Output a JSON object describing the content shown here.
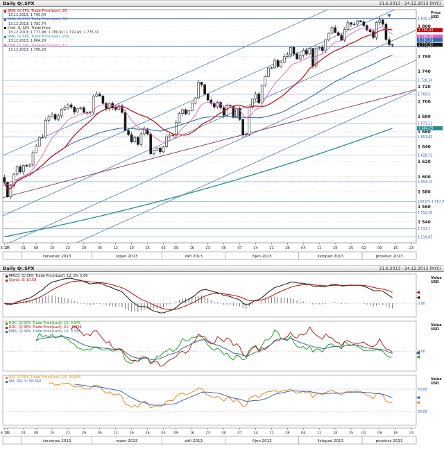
{
  "main": {
    "header": {
      "title": "Daily Q/.SPX",
      "range": "21.6.2013 - 24.12.2013 (NYC)"
    },
    "axis_caption": [
      "Price",
      "USD"
    ],
    "legend": [
      {
        "color": "#d00000",
        "name": "SMA, Q/.SPX, Trade Price(Last), 20",
        "value": "13.12.2013; 1 795,04"
      },
      {
        "color": "#2f6fbf",
        "name": "SMA, Q/.SPX, Trade Price(Last), 50",
        "value": "13.12.2013; 1 781,74"
      },
      {
        "color": "#1a1a1a",
        "name": "Cndl, Q/.SPX, Trade Price",
        "value": "13.12.2013; 1 777,98; 1 780,92; 1 772,45; 1 775,32"
      },
      {
        "color": "#1f9090",
        "name": "SMA, Q/.SPX, Trade Price(Last), 200",
        "value": "13.12.2013; 1 664,29"
      },
      {
        "color": "#e060c0",
        "name": "EMA, Q/.SPX, Trade Price(Last), 10",
        "value": "13.12.2013; 1 786,29"
      }
    ]
  },
  "sub": {
    "header": {
      "title": "Daily Q/.SPX",
      "range": "21.6.2013 - 24.12.2013 (NYC)"
    }
  },
  "indicators": {
    "macd": {
      "axis_caption": [
        "Value",
        "USD"
      ],
      "legend": [
        {
          "color": "#111111",
          "name": "MACD, Q/.SPX, Trade Price(Last), 12, 26; 5,66"
        },
        {
          "color": "#cc0000",
          "name": "Signal, 9; 10,58"
        }
      ]
    },
    "roc": {
      "axis_caption": [
        "Value",
        "USD"
      ],
      "legend": [
        {
          "color": "#00a000",
          "name": "ROC, Q/.SPX, Trade Price(Last), 10; 0,976"
        },
        {
          "color": "#cc0000",
          "name": "ROC, Q/.SPX, Trade Price(Last), 21; -0,864"
        },
        {
          "color": "#336699",
          "name": "EMA, Q/.SPX, Trade Price(Last), 10; 0,328"
        }
      ]
    },
    "rsi": {
      "axis_caption": [
        "Value",
        "USD"
      ],
      "legend": [
        {
          "color": "#ff8000",
          "name": "RSI, Q/.SPX, Trade Price(Last), 14; 45,845"
        },
        {
          "color": "#3366cc",
          "name": "MA, RSI, 9; 58,640"
        }
      ]
    }
  },
  "chart_data": [
    {
      "type": "candlestick",
      "title": "Daily Q/.SPX",
      "x_range_days": [
        0,
        130
      ],
      "ylim": [
        1512,
        1822
      ],
      "first_open": 1599,
      "close": [
        1592.43,
        1573.09,
        1588.03,
        1603.26,
        1613.2,
        1606.28,
        1614.96,
        1614.08,
        1615.41,
        1631.89,
        1640.46,
        1652.32,
        1652.62,
        1675.02,
        1680.19,
        1682.5,
        1676.26,
        1680.91,
        1689.37,
        1692.09,
        1695.53,
        1692.39,
        1685.94,
        1690.25,
        1691.65,
        1685.33,
        1685.96,
        1685.73,
        1706.87,
        1709.67,
        1707.14,
        1697.37,
        1690.91,
        1697.48,
        1691.42,
        1689.47,
        1694.16,
        1685.39,
        1661.32,
        1655.83,
        1646.06,
        1652.35,
        1642.8,
        1656.96,
        1663.5,
        1656.78,
        1630.48,
        1634.96,
        1638.17,
        1632.97,
        1639.77,
        1653.08,
        1655.08,
        1655.17,
        1671.71,
        1683.99,
        1689.13,
        1683.42,
        1687.99,
        1697.6,
        1704.76,
        1725.52,
        1722.34,
        1709.91,
        1701.84,
        1697.42,
        1692.77,
        1698.67,
        1691.75,
        1681.55,
        1695.0,
        1693.87,
        1678.66,
        1690.5,
        1676.12,
        1655.45,
        1656.4,
        1692.56,
        1703.2,
        1710.14,
        1698.06,
        1721.54,
        1733.15,
        1744.5,
        1744.66,
        1754.67,
        1746.38,
        1752.07,
        1759.77,
        1762.11,
        1771.95,
        1763.31,
        1756.54,
        1761.64,
        1767.93,
        1762.97,
        1770.49,
        1747.15,
        1770.61,
        1771.89,
        1767.69,
        1782.0,
        1790.62,
        1798.18,
        1791.53,
        1787.87,
        1781.37,
        1795.85,
        1804.76,
        1802.48,
        1802.75,
        1807.23,
        1805.81,
        1800.9,
        1795.15,
        1792.81,
        1785.03,
        1805.09,
        1808.37,
        1802.62,
        1782.22,
        1775.5,
        1775.32
      ],
      "colors": {
        "sma20": "#d00000",
        "sma50": "#2f6fbf",
        "sma200": "#1f9090",
        "ema10": "#e060c0"
      },
      "sma200_anchors": [
        1520,
        1664.29
      ],
      "yticks": [
        {
          "v": 1800,
          "t": "1 800"
        },
        {
          "v": 1780,
          "t": "1 780"
        },
        {
          "v": 1760,
          "t": "1 760"
        },
        {
          "v": 1740,
          "t": "1 740"
        },
        {
          "v": 1720,
          "t": "1 720"
        },
        {
          "v": 1700,
          "t": "1 700"
        },
        {
          "v": 1680,
          "t": "1 680"
        },
        {
          "v": 1660,
          "t": "1 660"
        },
        {
          "v": 1640,
          "t": "1 640"
        },
        {
          "v": 1620,
          "t": "1 620"
        },
        {
          "v": 1600,
          "t": "1 600"
        },
        {
          "v": 1580,
          "t": "1 580"
        },
        {
          "v": 1560,
          "t": "1 560"
        },
        {
          "v": 1540,
          "t": "1 540"
        }
      ],
      "levels": [
        {
          "v": 1810.25,
          "t": "1 810,25",
          "s": 1
        },
        {
          "v": 1773.46,
          "t": "1 773,46",
          "s": 1
        },
        {
          "v": 1728.34,
          "t": "1 728,34"
        },
        {
          "v": 1709.5,
          "t": "1 709,5"
        },
        {
          "v": 1671.12,
          "t": "1 671,12"
        },
        {
          "v": 1653.03,
          "t": "1 653,03"
        },
        {
          "v": 1628.72,
          "t": "1 628,72"
        },
        {
          "v": 1593.24,
          "t": "1 593,24"
        },
        {
          "v": 1567.06,
          "t": "100,0%  1 567,06"
        },
        {
          "v": 1552.26,
          "t": "1 552,26"
        },
        {
          "v": 1531.1,
          "t": "1 531,1"
        },
        {
          "v": 1519.87,
          "t": "1 519,87"
        }
      ],
      "trendlines": [
        {
          "x1": 0,
          "y1": 1468,
          "x2": 130,
          "y2": 1715,
          "color": "#4a7ab5",
          "w": 0.8
        },
        {
          "x1": 0,
          "y1": 1508,
          "x2": 130,
          "y2": 1755,
          "color": "#4a7ab5",
          "w": 0.8
        },
        {
          "x1": 0,
          "y1": 1548,
          "x2": 130,
          "y2": 1795,
          "color": "#4a7ab5",
          "w": 0.8
        },
        {
          "x1": 0,
          "y1": 1588,
          "x2": 130,
          "y2": 1835,
          "color": "#4a7ab5",
          "w": 0.8
        },
        {
          "x1": 0,
          "y1": 1628,
          "x2": 130,
          "y2": 1875,
          "color": "#4a7ab5",
          "w": 0.8
        },
        {
          "x1": 0,
          "y1": 1572,
          "x2": 130,
          "y2": 1716,
          "color": "#8b3a62",
          "w": 0.9
        }
      ],
      "markers": [
        {
          "v": 1795.04,
          "t": "1 795,04",
          "c": "#d00000"
        },
        {
          "v": 1786.29,
          "t": "1 786,29",
          "c": "#e060c0"
        },
        {
          "v": 1781.74,
          "t": "1 781,74",
          "c": "#2f6fbf"
        },
        {
          "v": 1775.32,
          "t": "1 775,32",
          "c": "#1a1a1a"
        },
        {
          "v": 1664.29,
          "t": "1 664,29",
          "c": "#1f9090"
        }
      ],
      "annotation": {
        "x": 121,
        "v": 1812,
        "color": "#2255bb"
      },
      "xticks": [
        {
          "x": 0,
          "t": "6 13"
        },
        {
          "x": 1,
          "t": "24"
        },
        {
          "x": 6,
          "t": "01"
        },
        {
          "x": 10,
          "t": "08"
        },
        {
          "x": 15,
          "t": "15"
        },
        {
          "x": 20,
          "t": "22"
        },
        {
          "x": 25,
          "t": "29"
        },
        {
          "x": 30,
          "t": "05"
        },
        {
          "x": 35,
          "t": "12"
        },
        {
          "x": 40,
          "t": "19"
        },
        {
          "x": 45,
          "t": "26"
        },
        {
          "x": 50,
          "t": "03"
        },
        {
          "x": 54,
          "t": "09"
        },
        {
          "x": 59,
          "t": "16"
        },
        {
          "x": 64,
          "t": "23"
        },
        {
          "x": 69,
          "t": "30"
        },
        {
          "x": 74,
          "t": "07"
        },
        {
          "x": 79,
          "t": "14"
        },
        {
          "x": 84,
          "t": "21"
        },
        {
          "x": 89,
          "t": "28"
        },
        {
          "x": 94,
          "t": "04"
        },
        {
          "x": 99,
          "t": "11"
        },
        {
          "x": 104,
          "t": "18"
        },
        {
          "x": 109,
          "t": "25"
        },
        {
          "x": 113,
          "t": "02"
        },
        {
          "x": 118,
          "t": "09"
        },
        {
          "x": 123,
          "t": "16"
        },
        {
          "x": 128,
          "t": "23"
        }
      ],
      "months": [
        {
          "label": "červenec 2013",
          "from": 6,
          "to": 28
        },
        {
          "label": "srpen 2013",
          "from": 28,
          "to": 50
        },
        {
          "label": "září 2013",
          "from": 50,
          "to": 70
        },
        {
          "label": "říjen 2013",
          "from": 70,
          "to": 93
        },
        {
          "label": "listopad 2013",
          "from": 93,
          "to": 113
        },
        {
          "label": "prosinec 2013",
          "from": 113,
          "to": 130
        }
      ]
    },
    {
      "type": "macd",
      "derived_from": "chart_data[0].close",
      "fast": 12,
      "slow": 26,
      "signal_period": 9,
      "colors": {
        "macd": "#111111",
        "signal": "#cc0000",
        "histogram": "#666666"
      },
      "right_labels": [
        {
          "v": 0,
          "t": "0,00"
        }
      ]
    },
    {
      "type": "roc",
      "derived_from": "chart_data[0].close",
      "series": [
        {
          "kind": "roc",
          "period": 10,
          "color": "#00a000"
        },
        {
          "kind": "roc",
          "period": 21,
          "color": "#cc0000"
        },
        {
          "kind": "ema_of_roc",
          "period": 10,
          "ema": 8,
          "color": "#336699"
        }
      ],
      "right_labels": [
        {
          "v": 0,
          "t": "0,00"
        }
      ]
    },
    {
      "type": "rsi",
      "derived_from": "chart_data[0].close",
      "period": 14,
      "ma_period": 9,
      "ylim": [
        5,
        95
      ],
      "colors": {
        "rsi": "#ff8000",
        "ma": "#3366cc"
      },
      "levels": [
        {
          "v": 70,
          "t": "70,00"
        },
        {
          "v": 30,
          "t": "30,00"
        }
      ]
    }
  ]
}
